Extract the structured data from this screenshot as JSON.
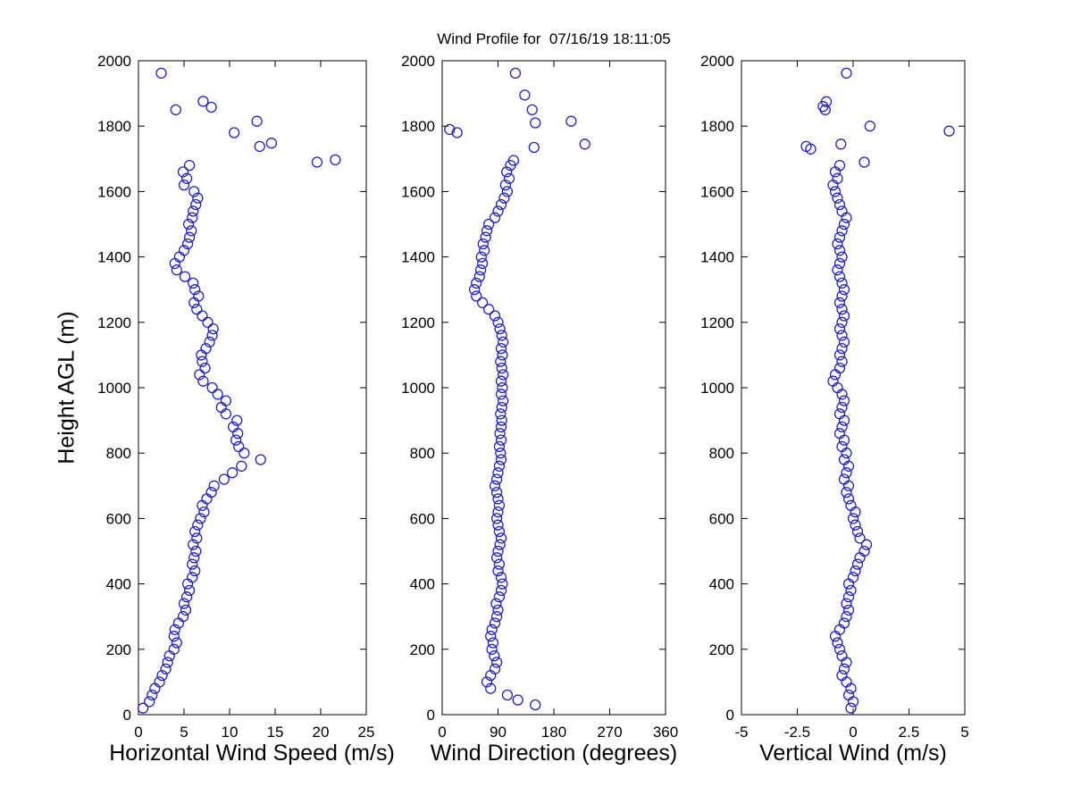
{
  "figure": {
    "background": "#ffffff",
    "axis_color": "#000000",
    "marker_color": "#2323bf"
  },
  "chart_data": [
    {
      "type": "scatter",
      "title": "",
      "xlabel": "Horizontal Wind Speed (m/s)",
      "ylabel": "Height AGL (m)",
      "marker": "o",
      "xlim": [
        0,
        25
      ],
      "ylim": [
        0,
        2000
      ],
      "xticks": [
        0,
        5,
        10,
        15,
        20,
        25
      ],
      "yticks": [
        0,
        200,
        400,
        600,
        800,
        1000,
        1200,
        1400,
        1600,
        1800,
        2000
      ],
      "points": [
        [
          0.5,
          20
        ],
        [
          1.2,
          40
        ],
        [
          1.5,
          60
        ],
        [
          1.8,
          80
        ],
        [
          2.3,
          100
        ],
        [
          2.6,
          120
        ],
        [
          3.0,
          140
        ],
        [
          3.2,
          160
        ],
        [
          3.4,
          180
        ],
        [
          3.9,
          200
        ],
        [
          4.2,
          220
        ],
        [
          3.9,
          240
        ],
        [
          4.0,
          260
        ],
        [
          4.4,
          280
        ],
        [
          4.9,
          300
        ],
        [
          5.2,
          320
        ],
        [
          5.0,
          340
        ],
        [
          5.3,
          360
        ],
        [
          5.6,
          380
        ],
        [
          5.4,
          400
        ],
        [
          5.9,
          420
        ],
        [
          6.2,
          440
        ],
        [
          5.9,
          460
        ],
        [
          6.1,
          480
        ],
        [
          6.3,
          500
        ],
        [
          6.0,
          520
        ],
        [
          6.4,
          540
        ],
        [
          6.2,
          560
        ],
        [
          6.5,
          580
        ],
        [
          6.8,
          600
        ],
        [
          7.2,
          620
        ],
        [
          7.0,
          640
        ],
        [
          7.5,
          660
        ],
        [
          8.0,
          680
        ],
        [
          8.3,
          700
        ],
        [
          9.4,
          720
        ],
        [
          10.3,
          740
        ],
        [
          11.3,
          760
        ],
        [
          13.4,
          780
        ],
        [
          11.6,
          800
        ],
        [
          11.0,
          820
        ],
        [
          10.7,
          840
        ],
        [
          10.9,
          860
        ],
        [
          10.4,
          880
        ],
        [
          10.8,
          900
        ],
        [
          9.6,
          920
        ],
        [
          9.1,
          940
        ],
        [
          9.6,
          960
        ],
        [
          8.7,
          980
        ],
        [
          8.1,
          1000
        ],
        [
          7.1,
          1020
        ],
        [
          6.7,
          1040
        ],
        [
          7.3,
          1060
        ],
        [
          7.0,
          1080
        ],
        [
          6.9,
          1100
        ],
        [
          7.4,
          1120
        ],
        [
          7.8,
          1140
        ],
        [
          8.1,
          1160
        ],
        [
          8.2,
          1180
        ],
        [
          7.6,
          1200
        ],
        [
          7.0,
          1220
        ],
        [
          6.4,
          1240
        ],
        [
          6.1,
          1260
        ],
        [
          6.6,
          1280
        ],
        [
          6.2,
          1300
        ],
        [
          6.0,
          1320
        ],
        [
          5.1,
          1340
        ],
        [
          4.2,
          1360
        ],
        [
          4.0,
          1380
        ],
        [
          4.5,
          1400
        ],
        [
          5.0,
          1420
        ],
        [
          5.4,
          1440
        ],
        [
          5.6,
          1460
        ],
        [
          5.8,
          1480
        ],
        [
          5.5,
          1500
        ],
        [
          5.9,
          1520
        ],
        [
          6.0,
          1540
        ],
        [
          6.3,
          1560
        ],
        [
          6.5,
          1580
        ],
        [
          6.1,
          1600
        ],
        [
          5.0,
          1620
        ],
        [
          5.3,
          1640
        ],
        [
          4.9,
          1660
        ],
        [
          5.6,
          1680
        ],
        [
          19.6,
          1690
        ],
        [
          21.6,
          1697
        ],
        [
          13.3,
          1738
        ],
        [
          14.6,
          1748
        ],
        [
          10.5,
          1780
        ],
        [
          13.0,
          1815
        ],
        [
          4.1,
          1850
        ],
        [
          8.0,
          1858
        ],
        [
          7.1,
          1876
        ],
        [
          2.5,
          1962
        ]
      ]
    },
    {
      "type": "scatter",
      "title": "Wind Profile for  07/16/19 18:11:05",
      "xlabel": "Wind Direction (degrees)",
      "ylabel": "",
      "marker": "o",
      "xlim": [
        0,
        360
      ],
      "ylim": [
        0,
        2000
      ],
      "xticks": [
        0,
        90,
        180,
        270,
        360
      ],
      "yticks": [
        0,
        200,
        400,
        600,
        800,
        1000,
        1200,
        1400,
        1600,
        1800,
        2000
      ],
      "points": [
        [
          150,
          30
        ],
        [
          122,
          45
        ],
        [
          105,
          60
        ],
        [
          78,
          80
        ],
        [
          72,
          100
        ],
        [
          78,
          120
        ],
        [
          85,
          140
        ],
        [
          88,
          160
        ],
        [
          84,
          180
        ],
        [
          80,
          200
        ],
        [
          82,
          220
        ],
        [
          78,
          240
        ],
        [
          80,
          260
        ],
        [
          85,
          280
        ],
        [
          88,
          300
        ],
        [
          90,
          320
        ],
        [
          87,
          340
        ],
        [
          92,
          360
        ],
        [
          95,
          380
        ],
        [
          97,
          400
        ],
        [
          95,
          420
        ],
        [
          90,
          440
        ],
        [
          92,
          460
        ],
        [
          88,
          480
        ],
        [
          90,
          500
        ],
        [
          93,
          520
        ],
        [
          95,
          540
        ],
        [
          92,
          560
        ],
        [
          90,
          580
        ],
        [
          88,
          600
        ],
        [
          90,
          620
        ],
        [
          92,
          640
        ],
        [
          90,
          660
        ],
        [
          88,
          680
        ],
        [
          85,
          700
        ],
        [
          88,
          720
        ],
        [
          90,
          740
        ],
        [
          92,
          760
        ],
        [
          95,
          780
        ],
        [
          94,
          800
        ],
        [
          92,
          820
        ],
        [
          95,
          840
        ],
        [
          93,
          860
        ],
        [
          95,
          880
        ],
        [
          96,
          900
        ],
        [
          94,
          920
        ],
        [
          96,
          940
        ],
        [
          98,
          960
        ],
        [
          95,
          980
        ],
        [
          97,
          1000
        ],
        [
          95,
          1020
        ],
        [
          98,
          1040
        ],
        [
          96,
          1060
        ],
        [
          94,
          1080
        ],
        [
          97,
          1100
        ],
        [
          95,
          1120
        ],
        [
          98,
          1140
        ],
        [
          96,
          1160
        ],
        [
          93,
          1180
        ],
        [
          90,
          1200
        ],
        [
          85,
          1220
        ],
        [
          75,
          1240
        ],
        [
          65,
          1260
        ],
        [
          55,
          1280
        ],
        [
          52,
          1300
        ],
        [
          55,
          1320
        ],
        [
          60,
          1340
        ],
        [
          62,
          1360
        ],
        [
          65,
          1380
        ],
        [
          63,
          1400
        ],
        [
          68,
          1420
        ],
        [
          66,
          1440
        ],
        [
          70,
          1460
        ],
        [
          72,
          1480
        ],
        [
          75,
          1500
        ],
        [
          85,
          1520
        ],
        [
          90,
          1540
        ],
        [
          95,
          1560
        ],
        [
          100,
          1580
        ],
        [
          105,
          1600
        ],
        [
          102,
          1620
        ],
        [
          108,
          1640
        ],
        [
          104,
          1660
        ],
        [
          110,
          1680
        ],
        [
          115,
          1695
        ],
        [
          148,
          1735
        ],
        [
          230,
          1745
        ],
        [
          24,
          1780
        ],
        [
          12,
          1790
        ],
        [
          150,
          1810
        ],
        [
          208,
          1815
        ],
        [
          145,
          1850
        ],
        [
          133,
          1895
        ],
        [
          118,
          1962
        ]
      ]
    },
    {
      "type": "scatter",
      "title": "",
      "xlabel": "Vertical Wind (m/s)",
      "ylabel": "",
      "marker": "o",
      "xlim": [
        -5,
        5
      ],
      "ylim": [
        0,
        2000
      ],
      "xticks": [
        -5,
        -2.5,
        0,
        2.5,
        5
      ],
      "yticks": [
        0,
        200,
        400,
        600,
        800,
        1000,
        1200,
        1400,
        1600,
        1800,
        2000
      ],
      "points": [
        [
          -0.1,
          20
        ],
        [
          0.0,
          40
        ],
        [
          -0.2,
          60
        ],
        [
          -0.1,
          80
        ],
        [
          -0.3,
          100
        ],
        [
          -0.5,
          120
        ],
        [
          -0.4,
          140
        ],
        [
          -0.3,
          160
        ],
        [
          -0.5,
          180
        ],
        [
          -0.6,
          200
        ],
        [
          -0.7,
          220
        ],
        [
          -0.8,
          240
        ],
        [
          -0.6,
          260
        ],
        [
          -0.4,
          280
        ],
        [
          -0.3,
          300
        ],
        [
          -0.2,
          320
        ],
        [
          -0.3,
          340
        ],
        [
          -0.2,
          360
        ],
        [
          -0.1,
          380
        ],
        [
          -0.2,
          400
        ],
        [
          0.0,
          420
        ],
        [
          0.1,
          440
        ],
        [
          0.2,
          460
        ],
        [
          0.3,
          480
        ],
        [
          0.5,
          500
        ],
        [
          0.6,
          520
        ],
        [
          0.3,
          540
        ],
        [
          0.2,
          560
        ],
        [
          0.1,
          580
        ],
        [
          0.0,
          600
        ],
        [
          0.1,
          620
        ],
        [
          -0.1,
          640
        ],
        [
          -0.2,
          660
        ],
        [
          -0.3,
          680
        ],
        [
          -0.2,
          700
        ],
        [
          -0.4,
          720
        ],
        [
          -0.3,
          740
        ],
        [
          -0.2,
          760
        ],
        [
          -0.4,
          780
        ],
        [
          -0.3,
          800
        ],
        [
          -0.5,
          820
        ],
        [
          -0.4,
          840
        ],
        [
          -0.6,
          860
        ],
        [
          -0.5,
          880
        ],
        [
          -0.4,
          900
        ],
        [
          -0.6,
          920
        ],
        [
          -0.5,
          940
        ],
        [
          -0.4,
          960
        ],
        [
          -0.5,
          980
        ],
        [
          -0.7,
          1000
        ],
        [
          -0.9,
          1020
        ],
        [
          -0.8,
          1040
        ],
        [
          -0.6,
          1060
        ],
        [
          -0.5,
          1080
        ],
        [
          -0.6,
          1100
        ],
        [
          -0.5,
          1120
        ],
        [
          -0.4,
          1140
        ],
        [
          -0.5,
          1160
        ],
        [
          -0.6,
          1180
        ],
        [
          -0.5,
          1200
        ],
        [
          -0.4,
          1220
        ],
        [
          -0.5,
          1240
        ],
        [
          -0.6,
          1260
        ],
        [
          -0.5,
          1280
        ],
        [
          -0.4,
          1300
        ],
        [
          -0.5,
          1320
        ],
        [
          -0.6,
          1340
        ],
        [
          -0.7,
          1360
        ],
        [
          -0.6,
          1380
        ],
        [
          -0.5,
          1400
        ],
        [
          -0.6,
          1420
        ],
        [
          -0.7,
          1440
        ],
        [
          -0.6,
          1460
        ],
        [
          -0.5,
          1480
        ],
        [
          -0.4,
          1500
        ],
        [
          -0.3,
          1520
        ],
        [
          -0.5,
          1540
        ],
        [
          -0.6,
          1560
        ],
        [
          -0.7,
          1580
        ],
        [
          -0.8,
          1600
        ],
        [
          -0.9,
          1620
        ],
        [
          -0.7,
          1640
        ],
        [
          -0.8,
          1660
        ],
        [
          -0.6,
          1680
        ],
        [
          0.5,
          1690
        ],
        [
          -1.9,
          1730
        ],
        [
          -2.1,
          1738
        ],
        [
          -0.55,
          1745
        ],
        [
          4.3,
          1785
        ],
        [
          0.75,
          1800
        ],
        [
          -1.25,
          1850
        ],
        [
          -1.35,
          1860
        ],
        [
          -1.2,
          1875
        ],
        [
          -0.3,
          1962
        ]
      ]
    }
  ]
}
